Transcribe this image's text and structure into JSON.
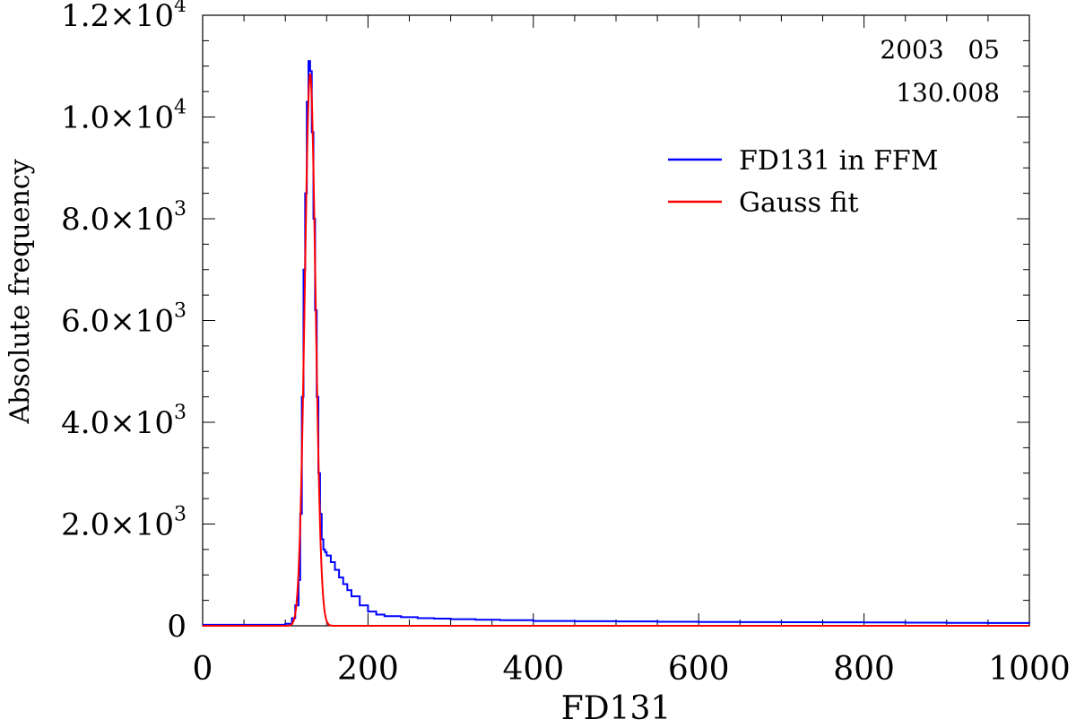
{
  "chart_data": {
    "type": "line",
    "title": "",
    "xlabel": "FD131",
    "ylabel": "Absolute frequency",
    "xlim": [
      0,
      1000
    ],
    "ylim": [
      0,
      12000
    ],
    "grid": false,
    "legend_position": "top-right",
    "annotations": [
      "2003   05",
      "130.008"
    ],
    "x_ticks": [
      0,
      200,
      400,
      600,
      800,
      1000
    ],
    "x_tick_labels": [
      "0",
      "200",
      "400",
      "600",
      "800",
      "1000"
    ],
    "y_ticks": [
      0,
      2000,
      4000,
      6000,
      8000,
      10000,
      12000
    ],
    "y_tick_labels": [
      {
        "mantissa": "0",
        "exponent": ""
      },
      {
        "mantissa": "2.0×10",
        "exponent": "3"
      },
      {
        "mantissa": "4.0×10",
        "exponent": "3"
      },
      {
        "mantissa": "6.0×10",
        "exponent": "3"
      },
      {
        "mantissa": "8.0×10",
        "exponent": "3"
      },
      {
        "mantissa": "1.0×10",
        "exponent": "4"
      },
      {
        "mantissa": "1.2×10",
        "exponent": "4"
      }
    ],
    "series": [
      {
        "name": "FD131 in FFM",
        "color": "#0000ff",
        "style": "step",
        "x": [
          0,
          100,
          108,
          112,
          116,
          118,
          120,
          122,
          124,
          126,
          128,
          130,
          132,
          134,
          136,
          138,
          140,
          142,
          144,
          146,
          148,
          150,
          155,
          160,
          165,
          170,
          175,
          180,
          190,
          200,
          210,
          220,
          240,
          260,
          280,
          300,
          330,
          360,
          400,
          450,
          500,
          550,
          600,
          650,
          700,
          750,
          800,
          850,
          900,
          950,
          1000
        ],
        "y": [
          20,
          40,
          150,
          400,
          900,
          2200,
          4500,
          7000,
          8500,
          10300,
          11100,
          10900,
          9700,
          8000,
          6200,
          4500,
          3000,
          2200,
          1700,
          1500,
          1450,
          1380,
          1250,
          1100,
          950,
          820,
          700,
          580,
          400,
          280,
          220,
          190,
          170,
          150,
          140,
          130,
          120,
          110,
          95,
          90,
          85,
          80,
          75,
          72,
          70,
          68,
          65,
          62,
          58,
          55,
          50
        ]
      },
      {
        "name": "Gauss fit",
        "color": "#ff0000",
        "style": "gaussian",
        "amplitude": 10850,
        "mean": 130.008,
        "sigma": 6.5
      }
    ]
  }
}
